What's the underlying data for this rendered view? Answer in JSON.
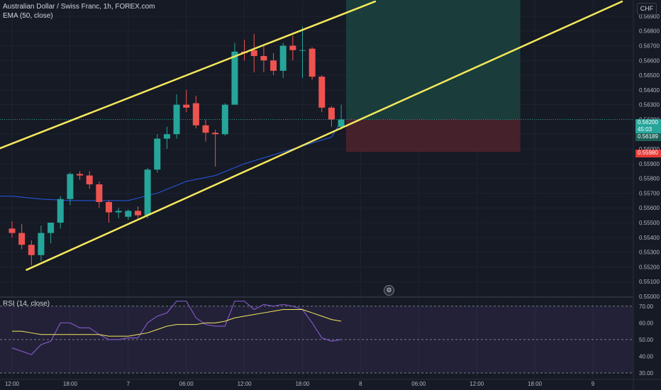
{
  "symbol_title": "Australian Dollar / Swiss Franc, 1h, FOREX.com",
  "ema_label": "EMA (50, close)",
  "rsi_label": "RSI (14, close)",
  "currency_badge": "CHF",
  "price_tags": {
    "current_price": "0.56200",
    "countdown": "45:03",
    "ema_value": "0.56189",
    "stop_level": "0.55980"
  },
  "colors": {
    "background": "#161a25",
    "bull": "#26a69a",
    "bear": "#ef5350",
    "channel": "#f5e85c",
    "ema": "#2962ff",
    "rsi": "#7e57c2",
    "rsi_ma": "#f5e85c",
    "target_zone": "#1b4440",
    "stop_zone": "#4a232c"
  },
  "chart_data": [
    {
      "type": "candlestick",
      "title": "Australian Dollar / Swiss Franc, 1h, FOREX.com",
      "y_axis_ticks": [
        "0.56900",
        "0.56800",
        "0.56700",
        "0.56600",
        "0.56500",
        "0.56400",
        "0.56300",
        "0.56200",
        "0.56100",
        "0.56000",
        "0.55900",
        "0.55800",
        "0.55700",
        "0.55600",
        "0.55500",
        "0.55400",
        "0.55300",
        "0.55200",
        "0.55100",
        "0.55000"
      ],
      "ylim": [
        0.55,
        0.5701
      ],
      "x_axis_ticks": [
        {
          "label": "12:00",
          "i": 0
        },
        {
          "label": "18:00",
          "i": 6
        },
        {
          "label": "7",
          "i": 12
        },
        {
          "label": "06:00",
          "i": 18
        },
        {
          "label": "12:00",
          "i": 24
        },
        {
          "label": "18:00",
          "i": 30
        },
        {
          "label": "8",
          "i": 36
        },
        {
          "label": "06:00",
          "i": 42
        },
        {
          "label": "12:00",
          "i": 48
        },
        {
          "label": "18:00",
          "i": 54
        },
        {
          "label": "9",
          "i": 60
        }
      ],
      "candles": [
        {
          "o": 0.5546,
          "h": 0.5551,
          "l": 0.554,
          "c": 0.5543
        },
        {
          "o": 0.5543,
          "h": 0.5549,
          "l": 0.5532,
          "c": 0.5535
        },
        {
          "o": 0.5535,
          "h": 0.5538,
          "l": 0.5521,
          "c": 0.5528
        },
        {
          "o": 0.5528,
          "h": 0.5548,
          "l": 0.5524,
          "c": 0.5543
        },
        {
          "o": 0.5543,
          "h": 0.5549,
          "l": 0.5536,
          "c": 0.555
        },
        {
          "o": 0.555,
          "h": 0.5568,
          "l": 0.5546,
          "c": 0.5566
        },
        {
          "o": 0.5566,
          "h": 0.5584,
          "l": 0.5562,
          "c": 0.5583
        },
        {
          "o": 0.5583,
          "h": 0.5585,
          "l": 0.5579,
          "c": 0.5582
        },
        {
          "o": 0.5582,
          "h": 0.5585,
          "l": 0.5573,
          "c": 0.5576
        },
        {
          "o": 0.5576,
          "h": 0.5578,
          "l": 0.556,
          "c": 0.5564
        },
        {
          "o": 0.5564,
          "h": 0.5565,
          "l": 0.555,
          "c": 0.5557
        },
        {
          "o": 0.5557,
          "h": 0.556,
          "l": 0.5553,
          "c": 0.5558
        },
        {
          "o": 0.5554,
          "h": 0.5559,
          "l": 0.5552,
          "c": 0.5558
        },
        {
          "o": 0.5558,
          "h": 0.5561,
          "l": 0.5553,
          "c": 0.5555
        },
        {
          "o": 0.5555,
          "h": 0.5587,
          "l": 0.5553,
          "c": 0.5586
        },
        {
          "o": 0.5586,
          "h": 0.561,
          "l": 0.5584,
          "c": 0.5607
        },
        {
          "o": 0.5607,
          "h": 0.5615,
          "l": 0.56,
          "c": 0.561
        },
        {
          "o": 0.561,
          "h": 0.5637,
          "l": 0.5607,
          "c": 0.563
        },
        {
          "o": 0.563,
          "h": 0.564,
          "l": 0.5625,
          "c": 0.5628
        },
        {
          "o": 0.5631,
          "h": 0.5636,
          "l": 0.5614,
          "c": 0.5616
        },
        {
          "o": 0.5616,
          "h": 0.562,
          "l": 0.5605,
          "c": 0.5611
        },
        {
          "o": 0.5611,
          "h": 0.5613,
          "l": 0.5588,
          "c": 0.561
        },
        {
          "o": 0.561,
          "h": 0.5631,
          "l": 0.5609,
          "c": 0.563
        },
        {
          "o": 0.563,
          "h": 0.5672,
          "l": 0.563,
          "c": 0.5666
        },
        {
          "o": 0.5666,
          "h": 0.5674,
          "l": 0.566,
          "c": 0.5665
        },
        {
          "o": 0.5667,
          "h": 0.5678,
          "l": 0.5652,
          "c": 0.5663
        },
        {
          "o": 0.5663,
          "h": 0.567,
          "l": 0.5652,
          "c": 0.566
        },
        {
          "o": 0.566,
          "h": 0.5665,
          "l": 0.565,
          "c": 0.5653
        },
        {
          "o": 0.5653,
          "h": 0.5672,
          "l": 0.5648,
          "c": 0.567
        },
        {
          "o": 0.567,
          "h": 0.5677,
          "l": 0.566,
          "c": 0.5667
        },
        {
          "o": 0.5667,
          "h": 0.5683,
          "l": 0.5648,
          "c": 0.5667
        },
        {
          "o": 0.5668,
          "h": 0.5669,
          "l": 0.5647,
          "c": 0.5649
        },
        {
          "o": 0.5649,
          "h": 0.565,
          "l": 0.5625,
          "c": 0.5628
        },
        {
          "o": 0.5628,
          "h": 0.5629,
          "l": 0.5615,
          "c": 0.562
        },
        {
          "o": 0.5615,
          "h": 0.563,
          "l": 0.5613,
          "c": 0.562
        }
      ],
      "channel_lines": [
        {
          "name": "upper",
          "from": {
            "i": -2,
            "p": 0.55985
          },
          "to": {
            "i": 37.5,
            "p": 0.57
          }
        },
        {
          "name": "lower",
          "from": {
            "i": 1.5,
            "p": 0.5518
          },
          "to": {
            "i": 63,
            "p": 0.57
          }
        }
      ],
      "ema_points": [
        {
          "i": 0,
          "p": 0.5568
        },
        {
          "i": 3,
          "p": 0.5566
        },
        {
          "i": 6,
          "p": 0.5565
        },
        {
          "i": 9,
          "p": 0.5565
        },
        {
          "i": 12,
          "p": 0.5565
        },
        {
          "i": 15,
          "p": 0.557
        },
        {
          "i": 18,
          "p": 0.5578
        },
        {
          "i": 21,
          "p": 0.5582
        },
        {
          "i": 24,
          "p": 0.559
        },
        {
          "i": 27,
          "p": 0.5596
        },
        {
          "i": 30,
          "p": 0.5602
        },
        {
          "i": 33,
          "p": 0.5608
        },
        {
          "i": 34,
          "p": 0.56189
        }
      ],
      "position": {
        "start_i": 34.5,
        "end_i": 52.5,
        "target": 0.5702,
        "entry": 0.562,
        "stop": 0.5598
      },
      "current_price_line": 0.562
    },
    {
      "type": "line",
      "title": "RSI (14, close)",
      "y_axis_ticks": [
        "70.00",
        "60.00",
        "50.00",
        "40.00",
        "30.00"
      ],
      "ylim": [
        27,
        75
      ],
      "bands": [
        70,
        50,
        30
      ],
      "series": [
        {
          "id": "rsi",
          "values": [
            45,
            43,
            41,
            47,
            49,
            60,
            60,
            57,
            57,
            53,
            50,
            50,
            51,
            51,
            60,
            64,
            66,
            73,
            73,
            63,
            59,
            58,
            58,
            73,
            73,
            68,
            71,
            70,
            71,
            70,
            68,
            60,
            51,
            49,
            50
          ]
        },
        {
          "id": "rsi_ma",
          "values": [
            55,
            55,
            54,
            53,
            53,
            53,
            53,
            53,
            53,
            53,
            52,
            52,
            52,
            53,
            54,
            56,
            58,
            59,
            59,
            59,
            60,
            60,
            61,
            63,
            64,
            65,
            66,
            67,
            68,
            68,
            68,
            66,
            64,
            62,
            61
          ]
        }
      ]
    }
  ]
}
